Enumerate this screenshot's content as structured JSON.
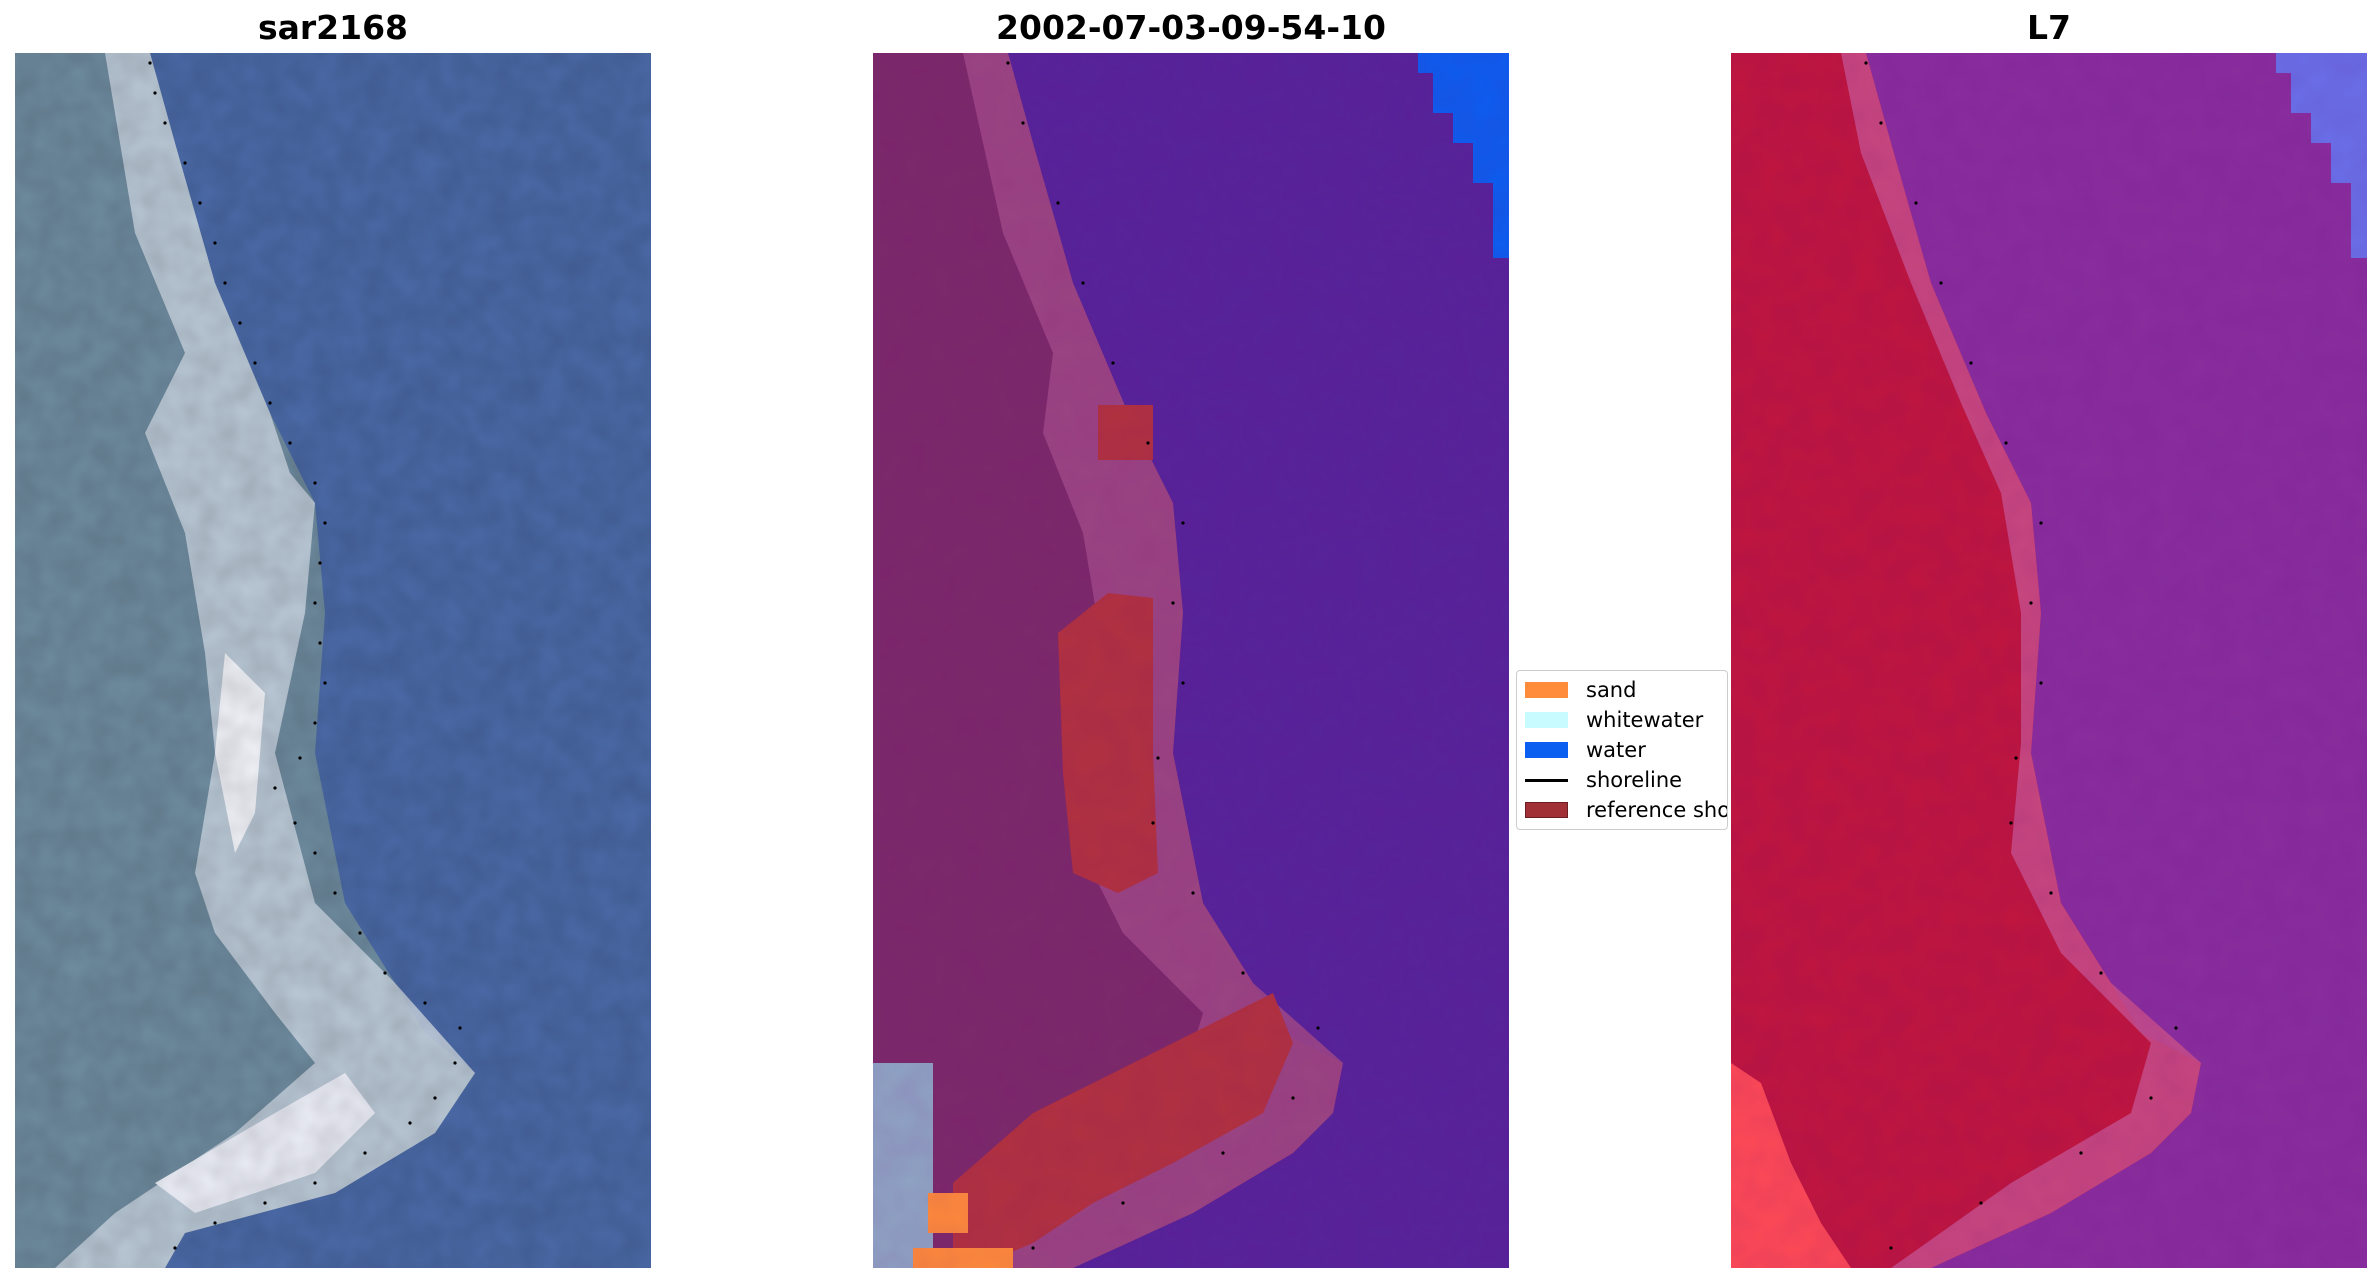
{
  "panels": [
    {
      "title": "sar2168",
      "kind": "rgb"
    },
    {
      "title": "2002-07-03-09-54-10",
      "kind": "classified"
    },
    {
      "title": "L7",
      "kind": "false-color"
    }
  ],
  "legend": {
    "items": [
      {
        "label": "sand",
        "color": "#ff8c3a",
        "type": "patch"
      },
      {
        "label": "whitewater",
        "color": "#c8fbff",
        "type": "patch"
      },
      {
        "label": "water",
        "color": "#0a5ef0",
        "type": "patch"
      },
      {
        "label": "shoreline",
        "color": "#000000",
        "type": "line"
      },
      {
        "label": "reference shoreline",
        "color": "#a03035",
        "type": "patch"
      }
    ]
  },
  "colors": {
    "sea_rgb": "#4b6aa8",
    "land_rgb": "#6f8ca0",
    "surf_rgb": "#e8ecf4",
    "sea_classified": "#55249a",
    "land_classified": "#7b2a6a",
    "nir_land": "#c0163e",
    "nir_sea": "#8a2e9e",
    "shoreline_dots": "#000000"
  }
}
